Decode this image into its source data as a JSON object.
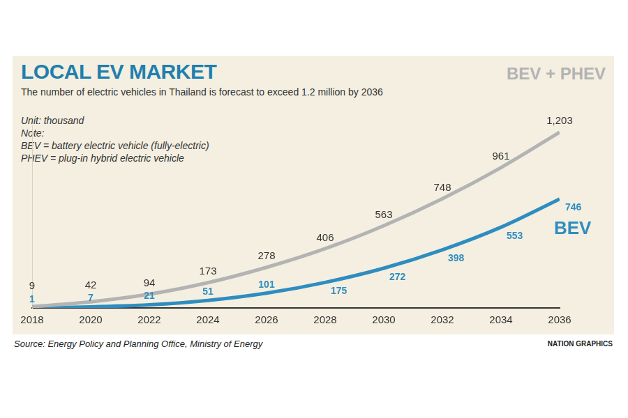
{
  "chart_data": {
    "type": "line",
    "title": "LOCAL EV MARKET",
    "subtitle": "The number of electric vehicles in Thailand is forecast to exceed 1.2 million by 2036",
    "notes": [
      "Unit: thousand",
      "Note:",
      "BEV = battery electric vehicle (fully-electric)",
      "PHEV = plug-in hybrid electric vehicle"
    ],
    "source": "Source: Energy Policy and Planning Office, Ministry of Energy",
    "credit": "NATION GRAPHICS",
    "categories": [
      "2018",
      "2020",
      "2022",
      "2024",
      "2026",
      "2028",
      "2030",
      "2032",
      "2034",
      "2036"
    ],
    "series": [
      {
        "name": "BEV + PHEV",
        "color": "#b3b3b3",
        "values": [
          9,
          42,
          94,
          173,
          278,
          406,
          563,
          748,
          961,
          1203
        ],
        "value_labels": [
          "9",
          "42",
          "94",
          "173",
          "278",
          "406",
          "563",
          "748",
          "961",
          "1,203"
        ]
      },
      {
        "name": "BEV",
        "color": "#2e8dc0",
        "values": [
          1,
          7,
          21,
          51,
          101,
          175,
          272,
          398,
          553,
          746
        ]
      }
    ],
    "ylim": [
      0,
      1250
    ],
    "grid": false,
    "data_labels": true,
    "tick_labels": "x"
  }
}
